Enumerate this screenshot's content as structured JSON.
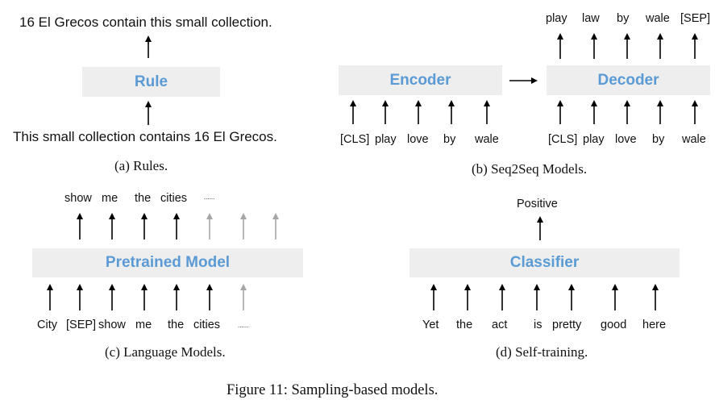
{
  "panel_a": {
    "output": "16 El Grecos contain this small collection.",
    "box": "Rule",
    "input": "This small collection contains 16 El Grecos.",
    "caption": "(a) Rules."
  },
  "panel_b": {
    "encoder": "Encoder",
    "decoder": "Decoder",
    "encoder_inputs": [
      "[CLS]",
      "play",
      "love",
      "by",
      "wale"
    ],
    "decoder_inputs": [
      "[CLS]",
      "play",
      "love",
      "by",
      "wale"
    ],
    "decoder_outputs": [
      "play",
      "law",
      "by",
      "wale",
      "[SEP]"
    ],
    "caption": "(b) Seq2Seq Models."
  },
  "panel_c": {
    "outputs": [
      "show",
      "me",
      "the",
      "cities",
      "......"
    ],
    "box": "Pretrained Model",
    "inputs": [
      "City",
      "[SEP]",
      "show",
      "me",
      "the",
      "cities",
      "......"
    ],
    "caption": "(c) Language Models."
  },
  "panel_d": {
    "output": "Positive",
    "box": "Classifier",
    "inputs": [
      "Yet",
      "the",
      "act",
      "is",
      "pretty",
      "good",
      "here"
    ],
    "caption": "(d) Self-training."
  },
  "figure_caption": "Figure 11: Sampling-based models.",
  "colors": {
    "box_fill": "#eeeeee",
    "box_text": "#5b9bd5",
    "arrow": "#000000",
    "faded_arrow": "#a6a6a6"
  }
}
